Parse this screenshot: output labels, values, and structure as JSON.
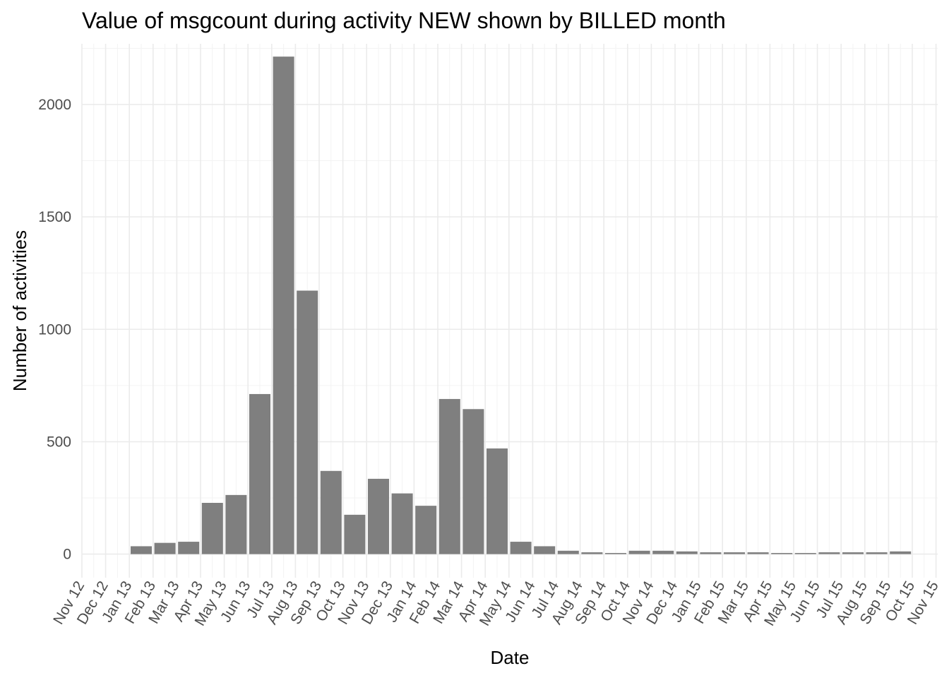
{
  "chart_data": {
    "type": "bar",
    "title": "Value of  msgcount during activity NEW shown by BILLED month",
    "xlabel": "Date",
    "ylabel": "Number of activities",
    "ylim": [
      -105,
      2270
    ],
    "yticks": [
      0,
      500,
      1000,
      1500,
      2000
    ],
    "x_tick_labels": [
      "Nov 12",
      "Dec 12",
      "Jan 13",
      "Feb 13",
      "Mar 13",
      "Apr 13",
      "May 13",
      "Jun 13",
      "Jul 13",
      "Aug 13",
      "Sep 13",
      "Oct 13",
      "Nov 13",
      "Dec 13",
      "Jan 14",
      "Feb 14",
      "Mar 14",
      "Apr 14",
      "May 14",
      "Jun 14",
      "Jul 14",
      "Aug 14",
      "Sep 14",
      "Oct 14",
      "Nov 14",
      "Dec 14",
      "Jan 15",
      "Feb 15",
      "Mar 15",
      "Apr 15",
      "May 15",
      "Jun 15",
      "Jul 15",
      "Aug 15",
      "Sep 15",
      "Oct 15",
      "Nov 15"
    ],
    "categories": [
      "Jan 13",
      "Feb 13",
      "Mar 13",
      "Apr 13",
      "May 13",
      "Jun 13",
      "Jul 13",
      "Aug 13",
      "Sep 13",
      "Oct 13",
      "Nov 13",
      "Dec 13",
      "Jan 14",
      "Feb 14",
      "Mar 14",
      "Apr 14",
      "May 14",
      "Jun 14",
      "Jul 14",
      "Aug 14",
      "Sep 14",
      "Oct 14",
      "Nov 14",
      "Dec 14",
      "Jan 15",
      "Feb 15",
      "Mar 15",
      "Apr 15",
      "May 15",
      "Jun 15",
      "Jul 15",
      "Aug 15",
      "Sep 15"
    ],
    "values": [
      35,
      50,
      55,
      228,
      263,
      712,
      2213,
      1172,
      370,
      175,
      335,
      270,
      215,
      690,
      645,
      470,
      55,
      35,
      15,
      8,
      5,
      15,
      15,
      12,
      8,
      8,
      8,
      5,
      5,
      8,
      8,
      8,
      12
    ],
    "bar_color": "#7f7f7f",
    "grid": true,
    "legend": "none"
  }
}
